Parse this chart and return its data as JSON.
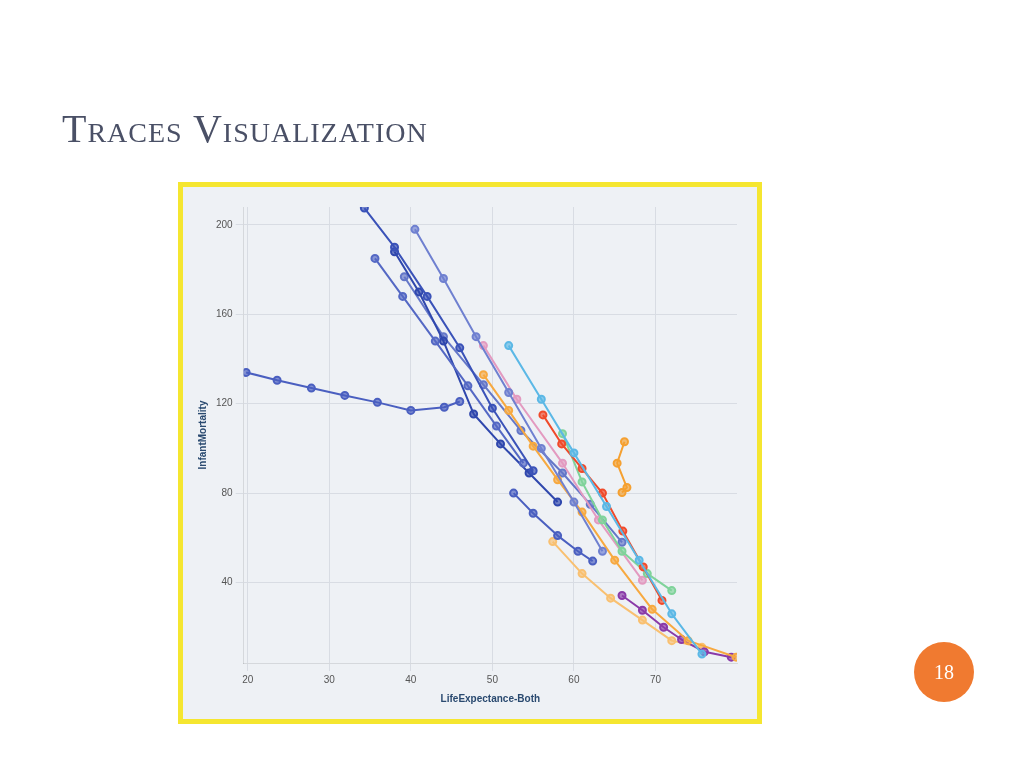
{
  "chart_data": {
    "type": "line",
    "title": "Traces Visualization",
    "xlabel": "LifeExpectance-Both",
    "ylabel": "InfantMortality",
    "xlim": [
      19.5,
      80
    ],
    "ylim": [
      4,
      208
    ],
    "xticks": [
      20,
      30,
      40,
      50,
      60,
      70
    ],
    "yticks": [
      40,
      80,
      120,
      160,
      200
    ],
    "grid": true,
    "legend": false,
    "marker": "circle",
    "annotations": [
      "18"
    ],
    "series": [
      {
        "color": "#4a5fc0",
        "x": [
          19.8,
          23.6,
          27.8,
          31.9,
          35.9,
          40,
          44.1,
          46
        ],
        "values": [
          134,
          130.5,
          127,
          123.7,
          120.6,
          117,
          118.4,
          121
        ]
      },
      {
        "color": "#3a52b8",
        "x": [
          34.3,
          38,
          42,
          46,
          50,
          55
        ],
        "values": [
          207.5,
          190,
          168,
          145,
          118,
          90
        ]
      },
      {
        "color": "#6f80d0",
        "x": [
          40.5,
          44,
          48,
          52,
          56,
          60,
          63.5
        ],
        "values": [
          198,
          176,
          150,
          125,
          100,
          76,
          54
        ]
      },
      {
        "color": "#5468c4",
        "x": [
          35.6,
          39,
          43,
          47,
          50.5,
          53.8
        ],
        "values": [
          185,
          168,
          148,
          128,
          110,
          93.4
        ]
      },
      {
        "color": "#2f47ad",
        "x": [
          38,
          41,
          44,
          47.7,
          51,
          54.5,
          58
        ],
        "values": [
          188,
          170,
          148,
          115.4,
          102,
          89,
          76
        ]
      },
      {
        "color": "#4a5fc0",
        "x": [
          52.6,
          55,
          58,
          60.5,
          62.3
        ],
        "values": [
          80,
          71,
          61,
          54,
          49.6
        ]
      },
      {
        "color": "#5bb8e6",
        "x": [
          52,
          56,
          60,
          64,
          68,
          72,
          75.7
        ],
        "values": [
          146,
          122,
          98,
          74,
          50,
          26,
          8
        ]
      },
      {
        "color": "#f7a940",
        "x": [
          48.9,
          52,
          55,
          58,
          61,
          65,
          69.6,
          74,
          79.9
        ],
        "values": [
          133,
          117,
          101,
          86,
          71.5,
          50,
          28,
          14,
          6.6
        ]
      },
      {
        "color": "#f04a2a",
        "x": [
          56.2,
          58.5,
          61,
          63.5,
          66,
          68.5,
          70.8
        ],
        "values": [
          115,
          102,
          91,
          80,
          63,
          47,
          32
        ]
      },
      {
        "color": "#f5a030",
        "x": [
          66.2,
          65.3,
          66.5,
          65.9
        ],
        "values": [
          103,
          93.4,
          82.5,
          80.3
        ]
      },
      {
        "color": "#8a3aa8",
        "x": [
          65.9,
          68.4,
          71,
          73.2,
          76,
          79.3
        ],
        "values": [
          34.2,
          27.6,
          20,
          14.5,
          9,
          6.6
        ]
      },
      {
        "color": "#7fd39a",
        "x": [
          58.6,
          61,
          63.5,
          65.9,
          69,
          72
        ],
        "values": [
          106.6,
          85,
          68,
          54,
          44,
          36.4
        ]
      },
      {
        "color": "#e39ac0",
        "x": [
          48.9,
          53,
          58.6,
          63,
          68.4
        ],
        "values": [
          146,
          122,
          93.4,
          68,
          41
        ]
      },
      {
        "color": "#f9c070",
        "x": [
          57.4,
          61,
          64.5,
          68.4,
          72,
          75.7
        ],
        "values": [
          58.3,
          44,
          33,
          23.2,
          14,
          11
        ]
      },
      {
        "color": "#6477c8",
        "x": [
          39.2,
          44,
          48.9,
          53.5,
          58.6,
          62,
          65.9
        ],
        "values": [
          176.8,
          150,
          128.5,
          108,
          89,
          75,
          58
        ]
      }
    ]
  }
}
